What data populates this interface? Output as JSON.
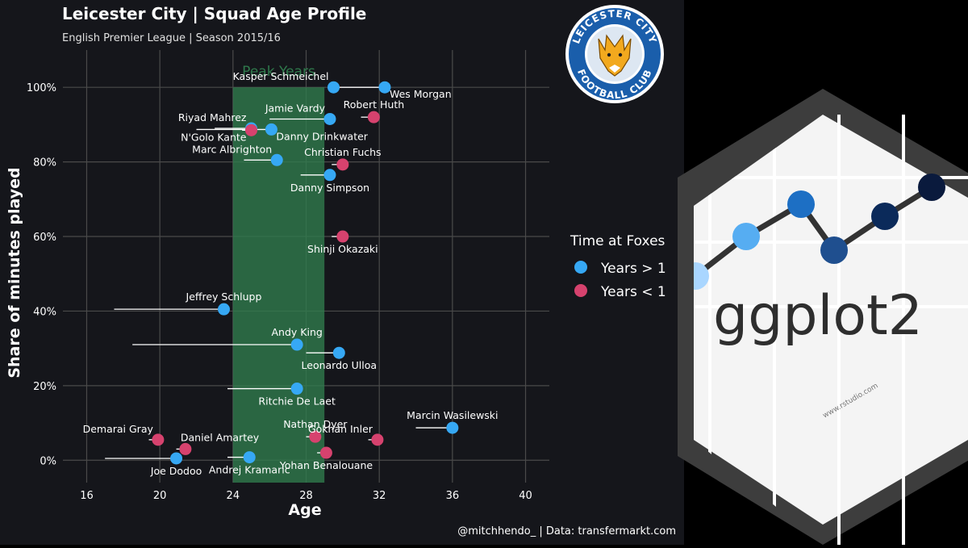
{
  "colors": {
    "background": "#15161b",
    "right_panel": "#000000",
    "grid": "#4a4a4a",
    "text": "#ffffff",
    "subtitle": "#e0e0e0",
    "peak_fill": "#2f7a4c",
    "peak_label": "#2f7a4c",
    "years_gt_1": "#36a8f4",
    "years_lt_1": "#d6426e",
    "segment": "#ffffff"
  },
  "caption": "@mitchhendo_  |  Data: transfermarkt.com",
  "logo": {
    "lettering": "LEICESTER CITY FOOTBALL CLUB"
  },
  "ggplot_logo": {
    "wordmark": "ggplot2",
    "url_text": "www.rstudio.com"
  },
  "chart_data": {
    "type": "scatter",
    "title": "Leicester City | Squad Age Profile",
    "subtitle": "English Premier League | Season 2015/16",
    "xlabel": "Age",
    "ylabel": "Share of minutes played",
    "xlim": [
      14.7,
      41.3
    ],
    "ylim": [
      -0.06,
      1.1
    ],
    "xticks": [
      16,
      20,
      24,
      28,
      32,
      36,
      40
    ],
    "yticks": [
      0,
      0.2,
      0.4,
      0.6,
      0.8,
      1.0
    ],
    "ytick_labels": [
      "0%",
      "20%",
      "40%",
      "60%",
      "80%",
      "100%"
    ],
    "grid": true,
    "peak_band": {
      "label": "Peak Years",
      "x_from": 24,
      "x_to": 29
    },
    "legend": {
      "title": "Time at Foxes",
      "position": "right",
      "entries": [
        {
          "label": "Years > 1",
          "group": "gt1"
        },
        {
          "label": "Years < 1",
          "group": "lt1"
        }
      ]
    },
    "points": [
      {
        "name": "Kasper Schmeichel",
        "age": 29.5,
        "share": 1.0,
        "joined_age": 29.5,
        "group": "gt1",
        "label_pos": "top-left"
      },
      {
        "name": "Wes Morgan",
        "age": 32.3,
        "share": 1.0,
        "joined_age": 29.5,
        "group": "gt1",
        "label_pos": "bottom-right"
      },
      {
        "name": "Jamie Vardy",
        "age": 29.3,
        "share": 0.915,
        "joined_age": 26.0,
        "group": "gt1",
        "label_pos": "top-left"
      },
      {
        "name": "Robert Huth",
        "age": 31.7,
        "share": 0.92,
        "joined_age": 31.0,
        "group": "lt1",
        "label_pos": "top"
      },
      {
        "name": "Riyad Mahrez",
        "age": 25.0,
        "share": 0.89,
        "joined_age": 23.0,
        "group": "gt1",
        "label_pos": "top-left"
      },
      {
        "name": "N'Golo Kante",
        "age": 25.0,
        "share": 0.885,
        "joined_age": 24.5,
        "group": "lt1",
        "label_pos": "bottom-left"
      },
      {
        "name": "Danny Drinkwater",
        "age": 26.1,
        "share": 0.887,
        "joined_age": 22.0,
        "group": "gt1",
        "label_pos": "bottom-right"
      },
      {
        "name": "Marc Albrighton",
        "age": 26.4,
        "share": 0.805,
        "joined_age": 24.6,
        "group": "gt1",
        "label_pos": "top-left"
      },
      {
        "name": "Christian Fuchs",
        "age": 30.0,
        "share": 0.793,
        "joined_age": 29.4,
        "group": "lt1",
        "label_pos": "top"
      },
      {
        "name": "Danny Simpson",
        "age": 29.3,
        "share": 0.765,
        "joined_age": 27.7,
        "group": "gt1",
        "label_pos": "bottom"
      },
      {
        "name": "Shinji Okazaki",
        "age": 30.0,
        "share": 0.6,
        "joined_age": 29.4,
        "group": "lt1",
        "label_pos": "bottom"
      },
      {
        "name": "Jeffrey Schlupp",
        "age": 23.5,
        "share": 0.405,
        "joined_age": 17.5,
        "group": "gt1",
        "label_pos": "top"
      },
      {
        "name": "Andy King",
        "age": 27.5,
        "share": 0.31,
        "joined_age": 18.5,
        "group": "gt1",
        "label_pos": "top"
      },
      {
        "name": "Leonardo Ulloa",
        "age": 29.8,
        "share": 0.288,
        "joined_age": 28.0,
        "group": "gt1",
        "label_pos": "bottom"
      },
      {
        "name": "Ritchie De Laet",
        "age": 27.5,
        "share": 0.192,
        "joined_age": 23.7,
        "group": "gt1",
        "label_pos": "bottom"
      },
      {
        "name": "Marcin Wasilewski",
        "age": 36.0,
        "share": 0.087,
        "joined_age": 34.0,
        "group": "gt1",
        "label_pos": "top"
      },
      {
        "name": "Nathan Dyer",
        "age": 28.5,
        "share": 0.063,
        "joined_age": 28.0,
        "group": "lt1",
        "label_pos": "top"
      },
      {
        "name": "Gokhan Inler",
        "age": 31.9,
        "share": 0.055,
        "joined_age": 31.4,
        "group": "lt1",
        "label_pos": "top-left"
      },
      {
        "name": "Demarai Gray",
        "age": 19.9,
        "share": 0.055,
        "joined_age": 19.4,
        "group": "lt1",
        "label_pos": "top-left"
      },
      {
        "name": "Daniel Amartey",
        "age": 21.4,
        "share": 0.03,
        "joined_age": 20.9,
        "group": "lt1",
        "label_pos": "top-right"
      },
      {
        "name": "Yohan Benalouane",
        "age": 29.1,
        "share": 0.02,
        "joined_age": 28.6,
        "group": "lt1",
        "label_pos": "bottom"
      },
      {
        "name": "Andrej Kramaric",
        "age": 24.9,
        "share": 0.008,
        "joined_age": 23.7,
        "group": "gt1",
        "label_pos": "bottom"
      },
      {
        "name": "Joe Dodoo",
        "age": 20.9,
        "share": 0.005,
        "joined_age": 17.0,
        "group": "gt1",
        "label_pos": "bottom"
      }
    ]
  }
}
